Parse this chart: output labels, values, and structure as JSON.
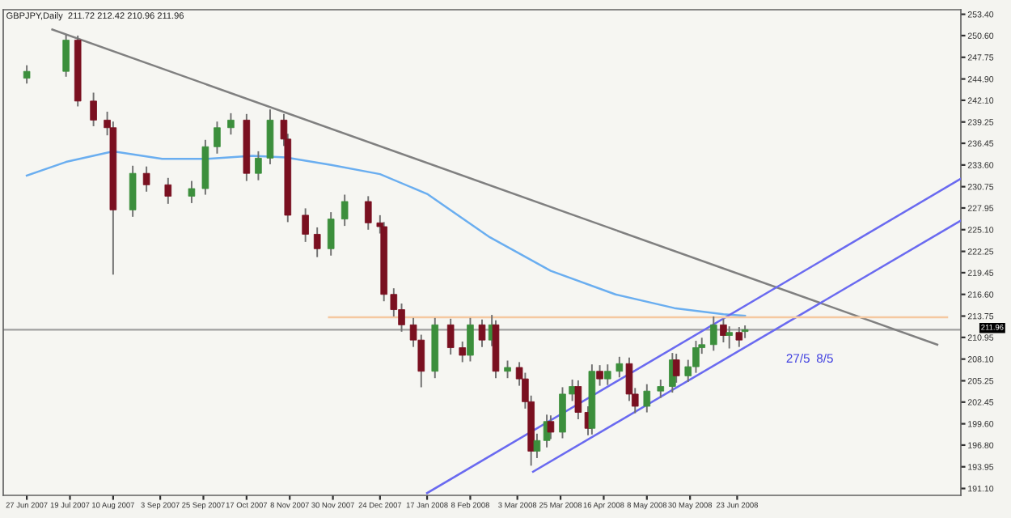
{
  "chart_data": {
    "type": "candlestick",
    "title": "GBPJPY,Daily  211.72 212.42 210.96 211.96",
    "xlim": [
      "2007-06-15",
      "2008-10-15"
    ],
    "ylim": [
      190.2,
      254.0
    ],
    "xticks": [
      {
        "value": "2007-06-27",
        "label": "27 Jun 2007"
      },
      {
        "value": "2007-07-19",
        "label": "19 Jul 2007"
      },
      {
        "value": "2007-08-10",
        "label": "10 Aug 2007"
      },
      {
        "value": "2007-09-03",
        "label": "3 Sep 2007"
      },
      {
        "value": "2007-09-25",
        "label": "25 Sep 2007"
      },
      {
        "value": "2007-10-17",
        "label": "17 Oct 2007"
      },
      {
        "value": "2007-11-08",
        "label": "8 Nov 2007"
      },
      {
        "value": "2007-11-30",
        "label": "30 Nov 2007"
      },
      {
        "value": "2007-12-24",
        "label": "24 Dec 2007"
      },
      {
        "value": "2008-01-17",
        "label": "17 Jan 2008"
      },
      {
        "value": "2008-02-08",
        "label": "8 Feb 2008"
      },
      {
        "value": "2008-03-03",
        "label": "3 Mar 2008"
      },
      {
        "value": "2008-03-25",
        "label": "25 Mar 2008"
      },
      {
        "value": "2008-04-16",
        "label": "16 Apr 2008"
      },
      {
        "value": "2008-05-08",
        "label": "8 May 2008"
      },
      {
        "value": "2008-05-30",
        "label": "30 May 2008"
      },
      {
        "value": "2008-06-23",
        "label": "23 Jun 2008"
      }
    ],
    "yticks": [
      {
        "value": 253.4,
        "label": "253.40"
      },
      {
        "value": 250.6,
        "label": "250.60"
      },
      {
        "value": 247.75,
        "label": "247.75"
      },
      {
        "value": 244.9,
        "label": "244.90"
      },
      {
        "value": 242.1,
        "label": "242.10"
      },
      {
        "value": 239.25,
        "label": "239.25"
      },
      {
        "value": 236.45,
        "label": "236.45"
      },
      {
        "value": 233.6,
        "label": "233.60"
      },
      {
        "value": 230.75,
        "label": "230.75"
      },
      {
        "value": 227.95,
        "label": "227.95"
      },
      {
        "value": 225.1,
        "label": "225.10"
      },
      {
        "value": 222.25,
        "label": "222.25"
      },
      {
        "value": 219.45,
        "label": "219.45"
      },
      {
        "value": 216.6,
        "label": "216.60"
      },
      {
        "value": 213.75,
        "label": "213.75"
      },
      {
        "value": 210.95,
        "label": "210.95"
      },
      {
        "value": 208.1,
        "label": "208.10"
      },
      {
        "value": 205.25,
        "label": "205.25"
      },
      {
        "value": 202.45,
        "label": "202.45"
      },
      {
        "value": 199.6,
        "label": "199.60"
      },
      {
        "value": 196.8,
        "label": "196.80"
      },
      {
        "value": 193.95,
        "label": "193.95"
      },
      {
        "value": 191.1,
        "label": "191.10"
      }
    ],
    "ref_lines": [
      {
        "axis": "y",
        "value": 211.96,
        "label": "211.96",
        "color": "#a0a0a0"
      }
    ],
    "annotations": [
      "27/5",
      "8/5"
    ],
    "x": [
      "2007-06-27",
      "2007-07-17",
      "2007-07-23",
      "2007-07-31",
      "2007-08-07",
      "2007-08-10",
      "2007-08-20",
      "2007-08-27",
      "2007-09-07",
      "2007-09-19",
      "2007-09-26",
      "2007-10-02",
      "2007-10-09",
      "2007-10-17",
      "2007-10-23",
      "2007-10-29",
      "2007-11-05",
      "2007-11-07",
      "2007-11-16",
      "2007-11-22",
      "2007-11-29",
      "2007-12-06",
      "2007-12-18",
      "2007-12-24",
      "2007-12-26",
      "2007-12-31",
      "2008-01-04",
      "2008-01-10",
      "2008-01-14",
      "2008-01-21",
      "2008-01-29",
      "2008-02-04",
      "2008-02-08",
      "2008-02-14",
      "2008-02-19",
      "2008-02-21",
      "2008-02-27",
      "2008-03-04",
      "2008-03-07",
      "2008-03-10",
      "2008-03-13",
      "2008-03-18",
      "2008-03-20",
      "2008-03-26",
      "2008-03-31",
      "2008-04-03",
      "2008-04-08",
      "2008-04-10",
      "2008-04-14",
      "2008-04-18",
      "2008-04-24",
      "2008-04-29",
      "2008-05-02",
      "2008-05-08",
      "2008-05-15",
      "2008-05-21",
      "2008-05-23",
      "2008-05-29",
      "2008-06-02",
      "2008-06-05",
      "2008-06-11",
      "2008-06-16",
      "2008-06-19",
      "2008-06-24",
      "2008-06-27"
    ],
    "colors": [
      "#3c8f3c",
      "#3c8f3c",
      "#7a1020",
      "#7a1020",
      "#7a1020",
      "#7a1020",
      "#3c8f3c",
      "#7a1020",
      "#7a1020",
      "#3c8f3c",
      "#3c8f3c",
      "#3c8f3c",
      "#3c8f3c",
      "#7a1020",
      "#3c8f3c",
      "#3c8f3c",
      "#7a1020",
      "#7a1020",
      "#7a1020",
      "#7a1020",
      "#3c8f3c",
      "#3c8f3c",
      "#7a1020",
      "#7a1020",
      "#7a1020",
      "#7a1020",
      "#7a1020",
      "#7a1020",
      "#7a1020",
      "#3c8f3c",
      "#7a1020",
      "#7a1020",
      "#3c8f3c",
      "#7a1020",
      "#3c8f3c",
      "#7a1020",
      "#3c8f3c",
      "#7a1020",
      "#7a1020",
      "#7a1020",
      "#3c8f3c",
      "#3c8f3c",
      "#7a1020",
      "#3c8f3c",
      "#3c8f3c",
      "#7a1020",
      "#7a1020",
      "#3c8f3c",
      "#7a1020",
      "#3c8f3c",
      "#3c8f3c",
      "#7a1020",
      "#7a1020",
      "#3c8f3c",
      "#3c8f3c",
      "#3c8f3c",
      "#7a1020",
      "#3c8f3c",
      "#3c8f3c",
      "#3c8f3c",
      "#3c8f3c",
      "#7a1020",
      "#3c8f3c",
      "#7a1020",
      "#3c8f3c"
    ],
    "ohlc": [
      [
        245.0,
        246.6,
        244.4,
        245.9
      ],
      [
        245.9,
        250.6,
        245.3,
        250.0
      ],
      [
        250.0,
        250.5,
        241.4,
        242.0
      ],
      [
        242.0,
        243.0,
        238.8,
        239.5
      ],
      [
        239.5,
        240.5,
        237.6,
        238.5
      ],
      [
        238.5,
        239.2,
        219.3,
        227.7
      ],
      [
        227.7,
        233.4,
        226.9,
        232.5
      ],
      [
        232.5,
        233.3,
        230.2,
        231.0
      ],
      [
        231.0,
        231.8,
        228.6,
        229.5
      ],
      [
        229.5,
        231.4,
        228.7,
        230.5
      ],
      [
        230.5,
        236.8,
        229.8,
        236.0
      ],
      [
        236.0,
        239.2,
        235.2,
        238.5
      ],
      [
        238.5,
        240.3,
        237.7,
        239.5
      ],
      [
        239.5,
        240.2,
        231.6,
        232.5
      ],
      [
        232.5,
        235.3,
        231.7,
        234.5
      ],
      [
        234.5,
        240.8,
        233.8,
        239.5
      ],
      [
        239.5,
        240.2,
        236.2,
        237.0
      ],
      [
        237.0,
        237.6,
        226.2,
        227.0
      ],
      [
        227.0,
        227.8,
        223.6,
        224.5
      ],
      [
        224.5,
        225.3,
        221.6,
        222.6
      ],
      [
        222.6,
        227.3,
        221.8,
        226.5
      ],
      [
        226.5,
        229.6,
        225.7,
        228.8
      ],
      [
        228.8,
        229.4,
        225.2,
        226.0
      ],
      [
        226.0,
        226.9,
        224.7,
        225.5
      ],
      [
        225.5,
        226.0,
        215.8,
        216.6
      ],
      [
        216.6,
        217.3,
        213.8,
        214.6
      ],
      [
        214.6,
        215.3,
        211.8,
        212.6
      ],
      [
        212.6,
        213.4,
        209.8,
        210.6
      ],
      [
        210.6,
        211.2,
        204.5,
        206.5
      ],
      [
        206.5,
        213.4,
        205.7,
        212.6
      ],
      [
        212.6,
        213.3,
        208.8,
        209.6
      ],
      [
        209.6,
        210.3,
        207.8,
        208.6
      ],
      [
        208.6,
        213.4,
        207.9,
        212.6
      ],
      [
        212.6,
        213.2,
        209.8,
        210.6
      ],
      [
        210.6,
        213.8,
        209.9,
        212.6
      ],
      [
        212.6,
        213.1,
        205.7,
        206.5
      ],
      [
        206.5,
        207.8,
        205.7,
        207.0
      ],
      [
        207.0,
        207.6,
        204.7,
        205.5
      ],
      [
        205.5,
        206.2,
        201.7,
        202.5
      ],
      [
        202.5,
        203.2,
        194.2,
        196.0
      ],
      [
        196.0,
        198.2,
        195.2,
        197.4
      ],
      [
        197.4,
        200.7,
        196.6,
        199.9
      ],
      [
        199.9,
        200.6,
        197.7,
        198.5
      ],
      [
        198.5,
        204.3,
        197.8,
        203.5
      ],
      [
        203.5,
        205.3,
        202.7,
        204.5
      ],
      [
        204.5,
        205.2,
        200.3,
        201.1
      ],
      [
        201.1,
        201.8,
        198.2,
        199.0
      ],
      [
        199.0,
        207.3,
        198.3,
        206.5
      ],
      [
        206.5,
        207.2,
        204.7,
        205.5
      ],
      [
        205.5,
        207.3,
        204.8,
        206.5
      ],
      [
        206.5,
        208.3,
        205.8,
        207.5
      ],
      [
        207.5,
        208.2,
        202.7,
        203.5
      ],
      [
        203.5,
        204.2,
        201.1,
        201.9
      ],
      [
        201.9,
        204.7,
        201.2,
        203.9
      ],
      [
        203.9,
        205.3,
        203.1,
        204.5
      ],
      [
        204.5,
        208.8,
        203.8,
        208.0
      ],
      [
        208.0,
        208.7,
        205.1,
        205.9
      ],
      [
        205.9,
        207.9,
        205.2,
        207.1
      ],
      [
        207.1,
        210.4,
        206.4,
        209.6
      ],
      [
        209.6,
        210.8,
        208.9,
        210.0
      ],
      [
        210.0,
        213.6,
        209.3,
        212.6
      ],
      [
        212.6,
        213.3,
        210.4,
        211.2
      ],
      [
        211.2,
        212.3,
        209.6,
        211.6
      ],
      [
        211.6,
        212.2,
        209.8,
        210.6
      ],
      [
        211.72,
        212.42,
        210.96,
        211.96
      ]
    ],
    "series": [
      {
        "type": "line",
        "color": "#6aaef0",
        "x": [
          "2007-06-27",
          "2007-07-17",
          "2007-08-10",
          "2007-09-04",
          "2007-09-27",
          "2007-10-20",
          "2007-11-06",
          "2007-11-29",
          "2007-12-24",
          "2008-01-17",
          "2008-02-18",
          "2008-03-20",
          "2008-04-22",
          "2008-05-22",
          "2008-06-16",
          "2008-06-27"
        ],
        "values": [
          232.2,
          234.0,
          235.4,
          234.4,
          234.4,
          234.8,
          234.6,
          233.6,
          232.4,
          229.8,
          224.1,
          219.7,
          216.6,
          214.8,
          214.0,
          213.8
        ]
      },
      {
        "type": "line",
        "color": "#808080",
        "x": [
          "2007-07-10",
          "2008-10-03"
        ],
        "values": [
          251.4,
          210.0
        ]
      },
      {
        "type": "line",
        "color": "#6a6af0",
        "x": [
          "2008-01-17",
          "2008-10-15"
        ],
        "values": [
          190.5,
          231.8
        ]
      },
      {
        "type": "line",
        "color": "#6a6af0",
        "x": [
          "2008-03-11",
          "2008-10-15"
        ],
        "values": [
          193.3,
          226.3
        ]
      },
      {
        "type": "line",
        "color": "#f5c8a0",
        "x": [
          "2007-11-28",
          "2008-10-08"
        ],
        "values": [
          213.6,
          213.6
        ]
      }
    ]
  }
}
